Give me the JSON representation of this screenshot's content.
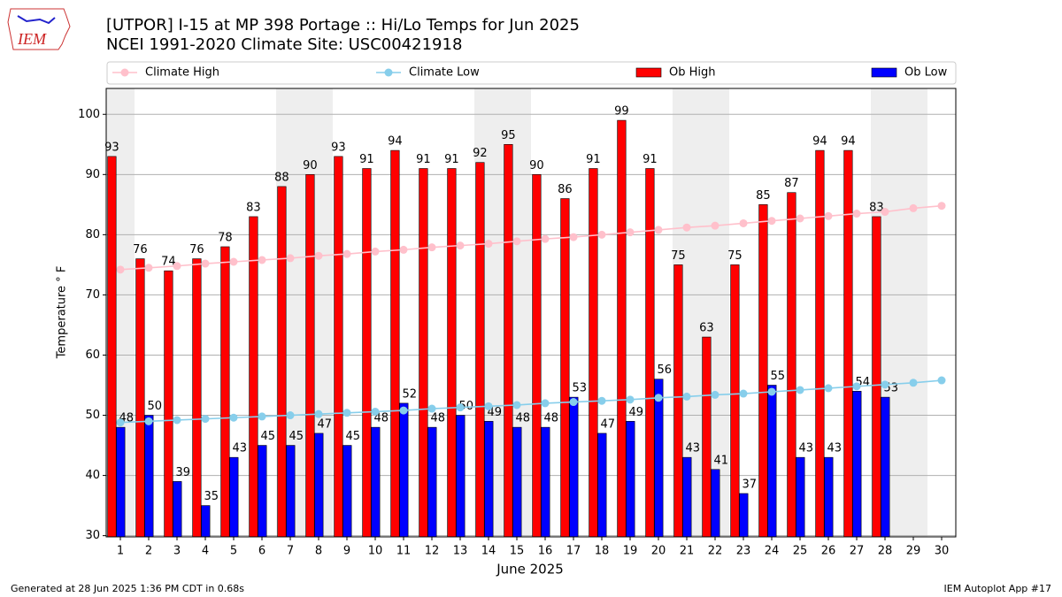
{
  "logo_text": "IEM",
  "footer": {
    "left": "Generated at 28 Jun 2025 1:36 PM CDT in 0.68s",
    "right": "IEM Autoplot App #17"
  },
  "chart_data": {
    "type": "bar",
    "title": "[UTPOR] I-15 at MP 398 Portage  :: Hi/Lo Temps for Jun 2025",
    "subtitle": "NCEI 1991-2020 Climate Site: USC00421918",
    "x_label": "June 2025",
    "y_label": "Temperature ° F",
    "categories": [
      1,
      2,
      3,
      4,
      5,
      6,
      7,
      8,
      9,
      10,
      11,
      12,
      13,
      14,
      15,
      16,
      17,
      18,
      19,
      20,
      21,
      22,
      23,
      24,
      25,
      26,
      27,
      28,
      29,
      30
    ],
    "ylim": [
      29.8,
      104.3
    ],
    "yticks": [
      30,
      40,
      50,
      60,
      70,
      80,
      90,
      100
    ],
    "grid": true,
    "legend": "top",
    "series": [
      {
        "name": "Climate High",
        "type": "line",
        "color": "#ffc0cb",
        "values": [
          74.2,
          74.5,
          74.8,
          75.2,
          75.5,
          75.8,
          76.1,
          76.5,
          76.8,
          77.2,
          77.5,
          77.9,
          78.2,
          78.5,
          78.9,
          79.3,
          79.6,
          80.0,
          80.4,
          80.8,
          81.2,
          81.5,
          81.9,
          82.3,
          82.7,
          83.1,
          83.5,
          83.8,
          84.4,
          84.8
        ]
      },
      {
        "name": "Climate Low",
        "type": "line",
        "color": "#87ceeb",
        "values": [
          48.8,
          49.0,
          49.2,
          49.4,
          49.6,
          49.8,
          50.0,
          50.2,
          50.4,
          50.6,
          50.8,
          51.1,
          51.3,
          51.5,
          51.7,
          52.0,
          52.2,
          52.4,
          52.6,
          52.9,
          53.1,
          53.4,
          53.6,
          53.9,
          54.2,
          54.5,
          54.8,
          55.1,
          55.4,
          55.8
        ]
      },
      {
        "name": "Ob High",
        "type": "bar",
        "color": "#ff0000",
        "values": [
          93,
          76,
          74,
          76,
          78,
          83,
          88,
          90,
          93,
          91,
          94,
          91,
          91,
          92,
          95,
          90,
          86,
          91,
          99,
          91,
          75,
          63,
          75,
          85,
          87,
          94,
          94,
          83,
          null,
          null
        ]
      },
      {
        "name": "Ob Low",
        "type": "bar",
        "color": "#0000ff",
        "values": [
          48,
          50,
          39,
          35,
          43,
          45,
          45,
          47,
          45,
          48,
          52,
          48,
          50,
          49,
          48,
          48,
          53,
          47,
          49,
          56,
          43,
          41,
          37,
          55,
          43,
          43,
          54,
          53,
          null,
          null
        ]
      }
    ]
  }
}
